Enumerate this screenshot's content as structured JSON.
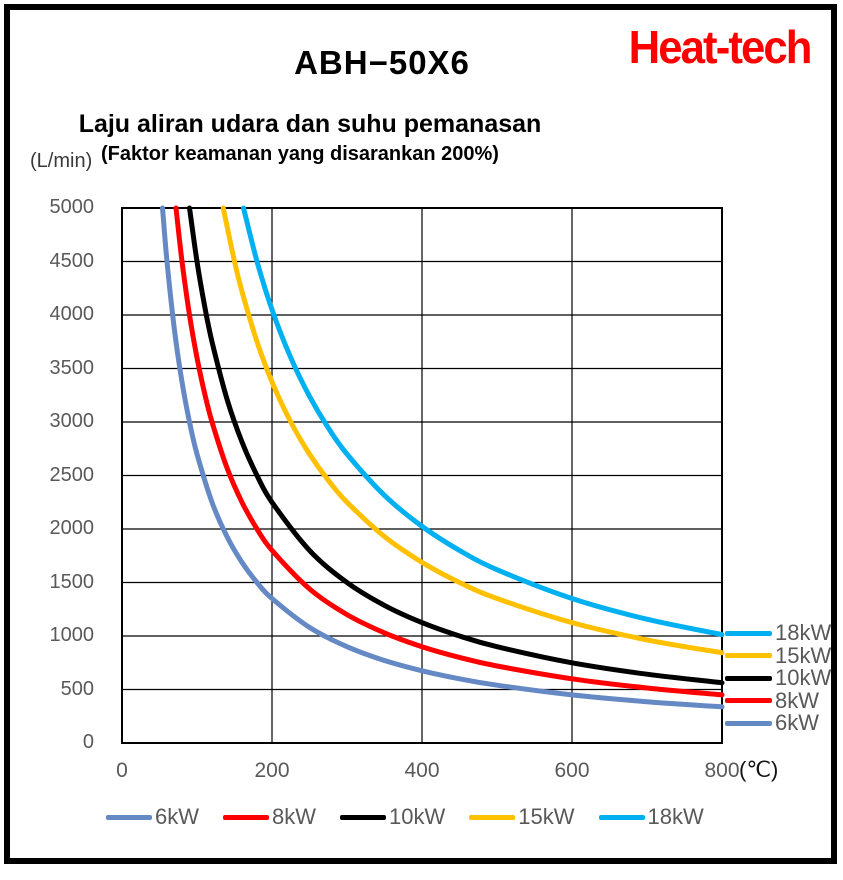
{
  "header": {
    "brand": "Heat-tech",
    "brand_color": "#FF0000",
    "title": "ABH−50X6",
    "subtitle": "Laju aliran udara dan suhu pemanasan",
    "subtitle2": "(Faktor keamanan yang disarankan 200%)"
  },
  "chart_data": {
    "type": "line",
    "title": "ABH−50X6",
    "subtitle": "Laju aliran udara dan suhu pemanasan (Faktor keamanan yang disarankan 200%)",
    "xlabel": "(℃)",
    "ylabel": "(L/min)",
    "xlim": [
      0,
      800
    ],
    "ylim": [
      0,
      5000
    ],
    "x_ticks": [
      0,
      200,
      400,
      600,
      800
    ],
    "y_ticks": [
      0,
      500,
      1000,
      1500,
      2000,
      2500,
      3000,
      3500,
      4000,
      4500,
      5000
    ],
    "grid": true,
    "grid_color": "#000000",
    "axis_text_color": "#595959",
    "legend_position": "bottom",
    "series": [
      {
        "name": "6kW",
        "color": "#6489C4",
        "points": [
          [
            54,
            5000
          ],
          [
            60,
            4500
          ],
          [
            70,
            3857
          ],
          [
            80,
            3375
          ],
          [
            90,
            3000
          ],
          [
            100,
            2700
          ],
          [
            120,
            2250
          ],
          [
            140,
            1929
          ],
          [
            160,
            1688
          ],
          [
            180,
            1500
          ],
          [
            200,
            1350
          ],
          [
            250,
            1080
          ],
          [
            300,
            900
          ],
          [
            350,
            771
          ],
          [
            400,
            675
          ],
          [
            450,
            600
          ],
          [
            500,
            540
          ],
          [
            600,
            450
          ],
          [
            700,
            386
          ],
          [
            800,
            338
          ]
        ]
      },
      {
        "name": "8kW",
        "color": "#FF0000",
        "points": [
          [
            72,
            5000
          ],
          [
            80,
            4500
          ],
          [
            90,
            4000
          ],
          [
            100,
            3600
          ],
          [
            110,
            3273
          ],
          [
            120,
            3000
          ],
          [
            140,
            2571
          ],
          [
            160,
            2250
          ],
          [
            180,
            2000
          ],
          [
            200,
            1800
          ],
          [
            250,
            1440
          ],
          [
            300,
            1200
          ],
          [
            350,
            1029
          ],
          [
            400,
            900
          ],
          [
            450,
            800
          ],
          [
            500,
            720
          ],
          [
            600,
            600
          ],
          [
            700,
            514
          ],
          [
            800,
            450
          ]
        ]
      },
      {
        "name": "10kW",
        "color": "#000000",
        "points": [
          [
            90,
            5000
          ],
          [
            100,
            4500
          ],
          [
            110,
            4091
          ],
          [
            120,
            3750
          ],
          [
            140,
            3214
          ],
          [
            160,
            2813
          ],
          [
            180,
            2500
          ],
          [
            200,
            2250
          ],
          [
            250,
            1800
          ],
          [
            300,
            1500
          ],
          [
            350,
            1286
          ],
          [
            400,
            1125
          ],
          [
            450,
            1000
          ],
          [
            500,
            900
          ],
          [
            600,
            750
          ],
          [
            700,
            643
          ],
          [
            800,
            563
          ]
        ]
      },
      {
        "name": "15kW",
        "color": "#FFC000",
        "points": [
          [
            135,
            5000
          ],
          [
            150,
            4500
          ],
          [
            160,
            4219
          ],
          [
            180,
            3750
          ],
          [
            200,
            3375
          ],
          [
            225,
            3000
          ],
          [
            250,
            2700
          ],
          [
            275,
            2455
          ],
          [
            300,
            2250
          ],
          [
            350,
            1929
          ],
          [
            400,
            1688
          ],
          [
            450,
            1500
          ],
          [
            500,
            1350
          ],
          [
            600,
            1125
          ],
          [
            700,
            964
          ],
          [
            800,
            844
          ]
        ]
      },
      {
        "name": "18kW",
        "color": "#00B0F0",
        "points": [
          [
            162,
            5000
          ],
          [
            180,
            4500
          ],
          [
            200,
            4050
          ],
          [
            225,
            3600
          ],
          [
            250,
            3240
          ],
          [
            275,
            2945
          ],
          [
            300,
            2700
          ],
          [
            350,
            2314
          ],
          [
            400,
            2025
          ],
          [
            450,
            1800
          ],
          [
            500,
            1620
          ],
          [
            600,
            1350
          ],
          [
            700,
            1157
          ],
          [
            800,
            1013
          ]
        ]
      }
    ],
    "right_edge_labels": [
      "18kW",
      "15kW",
      "10kW",
      "8kW",
      "6kW"
    ],
    "legend_labels": [
      "6kW",
      "8kW",
      "10kW",
      "15kW",
      "18kW"
    ]
  }
}
